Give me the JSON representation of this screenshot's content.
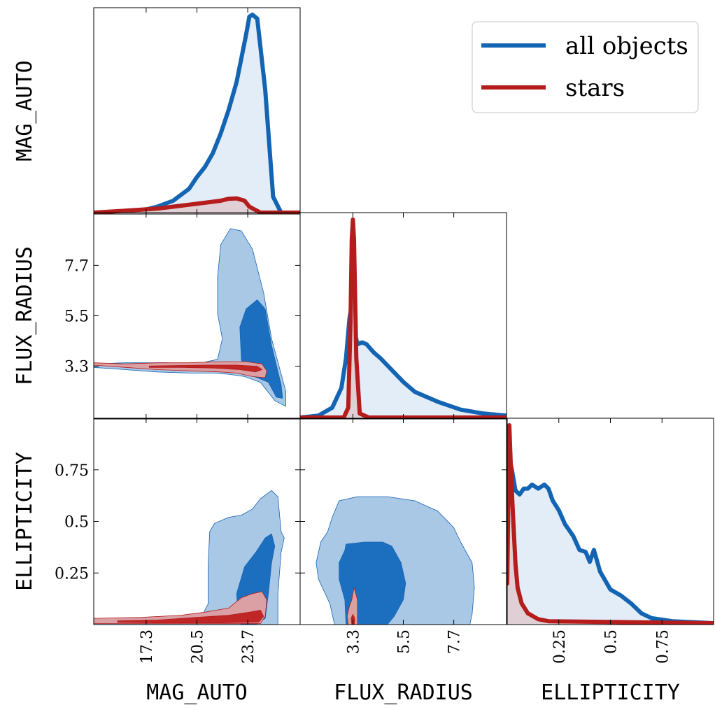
{
  "colors": {
    "all_line": "#1464b4",
    "all_fill": "#e3edf8",
    "all_c1": "#a8c8e6",
    "all_c2": "#1c6fbf",
    "star_line": "#b51c1c",
    "star_fill": "#e0cfd4",
    "star_c1": "#dba0a4",
    "star_c2": "#c02626"
  },
  "legend": {
    "placement": "top-right",
    "entries": [
      {
        "name": "all objects",
        "color": "#1464b4"
      },
      {
        "name": "stars",
        "color": "#b51c1c"
      }
    ]
  },
  "chart_data": {
    "type": "corner",
    "title": "",
    "parameters": [
      "MAG_AUTO",
      "FLUX_RADIUS",
      "ELLIPTICITY"
    ],
    "ranges": {
      "MAG_AUTO": [
        14.0,
        27.0
      ],
      "FLUX_RADIUS": [
        1.0,
        10.0
      ],
      "ELLIPTICITY": [
        0.0,
        1.0
      ]
    },
    "ticks": {
      "MAG_AUTO": [
        17.3,
        20.5,
        23.7
      ],
      "FLUX_RADIUS": [
        3.3,
        5.5,
        7.7
      ],
      "ELLIPTICITY": [
        0.25,
        0.5,
        0.75
      ]
    },
    "tick_labels": {
      "MAG_AUTO": [
        "17.3",
        "20.5",
        "23.7"
      ],
      "FLUX_RADIUS": [
        "3.3",
        "5.5",
        "7.7"
      ],
      "ELLIPTICITY": [
        "0.25",
        "0.5",
        "0.75"
      ]
    },
    "marginals": {
      "MAG_AUTO": {
        "all objects": {
          "x": [
            14,
            16,
            17,
            18,
            19,
            20,
            20.5,
            21,
            21.5,
            22,
            22.5,
            23,
            23.3,
            23.6,
            23.8,
            24,
            24.3,
            24.8,
            25.3,
            25.8,
            27
          ],
          "y": [
            0,
            0.005,
            0.01,
            0.03,
            0.06,
            0.12,
            0.18,
            0.23,
            0.3,
            0.4,
            0.52,
            0.66,
            0.78,
            0.9,
            0.99,
            1.0,
            0.98,
            0.62,
            0.08,
            0,
            0
          ]
        },
        "stars": {
          "x": [
            14,
            15,
            16,
            17,
            18,
            19,
            20,
            21,
            22,
            22.5,
            23,
            23.5,
            23.8,
            24.5,
            25,
            27
          ],
          "y": [
            0,
            0.005,
            0.01,
            0.015,
            0.02,
            0.03,
            0.04,
            0.05,
            0.06,
            0.07,
            0.072,
            0.06,
            0.03,
            0,
            0,
            0
          ]
        }
      },
      "FLUX_RADIUS": {
        "all objects": {
          "x": [
            1,
            1.8,
            2.4,
            2.8,
            3.0,
            3.15,
            3.3,
            3.4,
            3.5,
            3.7,
            3.9,
            4.2,
            4.5,
            5,
            5.5,
            6,
            7,
            8,
            9,
            10
          ],
          "y": [
            0,
            0.01,
            0.05,
            0.15,
            0.3,
            0.5,
            0.6,
            0.42,
            0.37,
            0.38,
            0.37,
            0.33,
            0.3,
            0.24,
            0.18,
            0.13,
            0.08,
            0.04,
            0.02,
            0.01
          ]
        },
        "stars": {
          "x": [
            1,
            2.9,
            3.1,
            3.2,
            3.25,
            3.3,
            3.35,
            3.45,
            3.6,
            4,
            10
          ],
          "y": [
            0,
            0,
            0.05,
            0.5,
            0.9,
            1.0,
            0.9,
            0.3,
            0.02,
            0,
            0
          ]
        }
      },
      "ELLIPTICITY": {
        "all objects": {
          "x": [
            0,
            0.02,
            0.04,
            0.06,
            0.08,
            0.1,
            0.12,
            0.15,
            0.18,
            0.2,
            0.22,
            0.25,
            0.28,
            0.32,
            0.35,
            0.38,
            0.4,
            0.42,
            0.45,
            0.5,
            0.55,
            0.6,
            0.65,
            0.7,
            0.8,
            1.0
          ],
          "y": [
            0.3,
            0.79,
            0.67,
            0.65,
            0.68,
            0.68,
            0.7,
            0.68,
            0.7,
            0.68,
            0.62,
            0.57,
            0.5,
            0.44,
            0.37,
            0.36,
            0.31,
            0.37,
            0.26,
            0.17,
            0.14,
            0.1,
            0.05,
            0.025,
            0.01,
            0
          ]
        },
        "stars": {
          "x": [
            0,
            0.01,
            0.02,
            0.03,
            0.04,
            0.05,
            0.07,
            0.1,
            0.15,
            0.2,
            1.0
          ],
          "y": [
            0.2,
            1.0,
            0.72,
            0.5,
            0.3,
            0.18,
            0.1,
            0.05,
            0.02,
            0.01,
            0
          ]
        }
      }
    },
    "contours": {
      "FLUX_RADIUS_vs_MAG_AUTO": {
        "all objects": {
          "outer": [
            [
              14,
              3.25
            ],
            [
              16,
              3.15
            ],
            [
              18,
              3.05
            ],
            [
              20,
              3.0
            ],
            [
              21.5,
              3.0
            ],
            [
              22.5,
              2.95
            ],
            [
              23.5,
              2.85
            ],
            [
              24.5,
              2.6
            ],
            [
              25.4,
              1.8
            ],
            [
              26.1,
              1.55
            ],
            [
              26.1,
              2.2
            ],
            [
              25.2,
              4.5
            ],
            [
              24.7,
              6.5
            ],
            [
              24.0,
              8.4
            ],
            [
              23.3,
              9.2
            ],
            [
              22.6,
              9.3
            ],
            [
              22.0,
              8.6
            ],
            [
              21.8,
              7.2
            ],
            [
              21.8,
              5.6
            ],
            [
              22.1,
              4.5
            ],
            [
              21.8,
              3.6
            ],
            [
              20.5,
              3.4
            ],
            [
              18.5,
              3.45
            ],
            [
              16,
              3.45
            ],
            [
              14,
              3.4
            ]
          ],
          "inner": [
            [
              23.3,
              3.6
            ],
            [
              23.2,
              5.0
            ],
            [
              23.6,
              5.8
            ],
            [
              24.3,
              6.2
            ],
            [
              24.8,
              5.8
            ],
            [
              25.2,
              4.2
            ],
            [
              25.8,
              2.5
            ],
            [
              25.9,
              1.9
            ],
            [
              25.5,
              1.95
            ],
            [
              25.0,
              2.6
            ],
            [
              24.3,
              2.8
            ],
            [
              23.4,
              3.0
            ]
          ]
        },
        "stars": {
          "outer": [
            [
              14,
              3.35
            ],
            [
              16,
              3.25
            ],
            [
              18,
              3.15
            ],
            [
              20,
              3.1
            ],
            [
              22,
              3.05
            ],
            [
              23,
              3.0
            ],
            [
              24.0,
              2.85
            ],
            [
              24.8,
              2.8
            ],
            [
              24.9,
              3.1
            ],
            [
              24.6,
              3.4
            ],
            [
              23.6,
              3.5
            ],
            [
              22,
              3.5
            ],
            [
              20,
              3.45
            ],
            [
              18,
              3.45
            ],
            [
              16,
              3.4
            ],
            [
              14,
              3.45
            ]
          ],
          "inner": [
            [
              17.5,
              3.25
            ],
            [
              19.5,
              3.25
            ],
            [
              21.5,
              3.22
            ],
            [
              23.2,
              3.15
            ],
            [
              24.2,
              3.05
            ],
            [
              24.6,
              3.15
            ],
            [
              24.3,
              3.3
            ],
            [
              23,
              3.35
            ],
            [
              21,
              3.35
            ],
            [
              19,
              3.33
            ],
            [
              17.5,
              3.31
            ]
          ]
        }
      },
      "ELLIPTICITY_vs_MAG_AUTO": {
        "all objects": {
          "outer": [
            [
              14,
              0.02
            ],
            [
              17,
              0.02
            ],
            [
              19.5,
              0.03
            ],
            [
              20.8,
              0.04
            ],
            [
              21.2,
              0.1
            ],
            [
              21.2,
              0.28
            ],
            [
              21.3,
              0.45
            ],
            [
              21.6,
              0.49
            ],
            [
              22.5,
              0.52
            ],
            [
              23.3,
              0.53
            ],
            [
              24,
              0.56
            ],
            [
              24.5,
              0.61
            ],
            [
              25.2,
              0.65
            ],
            [
              25.6,
              0.62
            ],
            [
              25.8,
              0.45
            ],
            [
              26.0,
              0.42
            ],
            [
              25.8,
              0.35
            ],
            [
              25.6,
              0.15
            ],
            [
              25.6,
              0.0
            ],
            [
              14,
              0.0
            ]
          ],
          "inner": [
            [
              23.1,
              0.03
            ],
            [
              23.0,
              0.15
            ],
            [
              23.5,
              0.28
            ],
            [
              24.2,
              0.35
            ],
            [
              24.8,
              0.42
            ],
            [
              25.2,
              0.44
            ],
            [
              25.4,
              0.38
            ],
            [
              25.2,
              0.3
            ],
            [
              25.0,
              0.15
            ],
            [
              24.8,
              0.03
            ],
            [
              24.2,
              0.0
            ],
            [
              23.3,
              0.0
            ]
          ]
        },
        "stars": {
          "outer": [
            [
              14,
              0.03
            ],
            [
              17,
              0.035
            ],
            [
              19.5,
              0.045
            ],
            [
              21,
              0.06
            ],
            [
              22.5,
              0.08
            ],
            [
              23.3,
              0.13
            ],
            [
              24.0,
              0.15
            ],
            [
              24.6,
              0.16
            ],
            [
              24.9,
              0.12
            ],
            [
              24.8,
              0.04
            ],
            [
              24.5,
              0.005
            ],
            [
              14,
              0.005
            ]
          ],
          "inner": [
            [
              15.5,
              0.018
            ],
            [
              18,
              0.022
            ],
            [
              20.5,
              0.035
            ],
            [
              22.5,
              0.045
            ],
            [
              23.8,
              0.06
            ],
            [
              24.5,
              0.07
            ],
            [
              24.7,
              0.04
            ],
            [
              24.4,
              0.012
            ],
            [
              22,
              0.008
            ],
            [
              18,
              0.008
            ],
            [
              15.5,
              0.01
            ]
          ]
        }
      },
      "ELLIPTICITY_vs_FLUX_RADIUS": {
        "all objects": {
          "outer": [
            [
              2.5,
              0.0
            ],
            [
              2.3,
              0.1
            ],
            [
              1.8,
              0.22
            ],
            [
              1.7,
              0.3
            ],
            [
              1.9,
              0.4
            ],
            [
              2.2,
              0.45
            ],
            [
              2.4,
              0.52
            ],
            [
              2.7,
              0.6
            ],
            [
              3.5,
              0.62
            ],
            [
              4.8,
              0.62
            ],
            [
              6.0,
              0.6
            ],
            [
              7.0,
              0.55
            ],
            [
              7.7,
              0.47
            ],
            [
              8.0,
              0.4
            ],
            [
              8.5,
              0.3
            ],
            [
              8.6,
              0.18
            ],
            [
              8.5,
              0.05
            ],
            [
              8.4,
              0.0
            ]
          ],
          "inner": [
            [
              3.0,
              0.0
            ],
            [
              2.95,
              0.12
            ],
            [
              2.7,
              0.22
            ],
            [
              2.7,
              0.3
            ],
            [
              2.95,
              0.36
            ],
            [
              3.0,
              0.39
            ],
            [
              3.8,
              0.4
            ],
            [
              4.6,
              0.4
            ],
            [
              5.0,
              0.38
            ],
            [
              5.4,
              0.3
            ],
            [
              5.6,
              0.2
            ],
            [
              5.5,
              0.12
            ],
            [
              5.1,
              0.04
            ],
            [
              4.8,
              0.0
            ]
          ]
        },
        "stars": {
          "outer": [
            [
              3.1,
              0.0
            ],
            [
              3.05,
              0.04
            ],
            [
              3.15,
              0.09
            ],
            [
              3.25,
              0.12
            ],
            [
              3.35,
              0.18
            ],
            [
              3.5,
              0.12
            ],
            [
              3.5,
              0.0
            ]
          ],
          "inner": [
            [
              3.25,
              0.0
            ],
            [
              3.22,
              0.03
            ],
            [
              3.3,
              0.05
            ],
            [
              3.38,
              0.03
            ],
            [
              3.38,
              0.0
            ]
          ]
        }
      }
    }
  }
}
